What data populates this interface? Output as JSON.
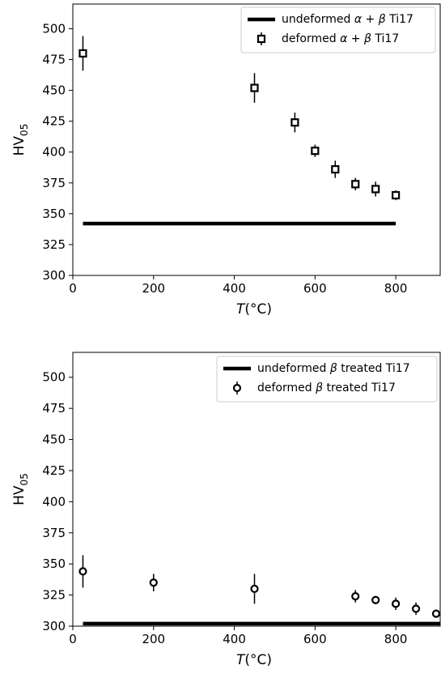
{
  "chart_data": [
    {
      "type": "scatter",
      "title": "",
      "xlabel": "T(°C)",
      "ylabel": "HV05",
      "xlim": [
        0,
        910
      ],
      "ylim": [
        300,
        520
      ],
      "x_ticks": [
        0,
        200,
        400,
        600,
        800
      ],
      "y_ticks": [
        300,
        325,
        350,
        375,
        400,
        425,
        450,
        475,
        500
      ],
      "grid": false,
      "legend_position": "top-right",
      "series": [
        {
          "name": "undeformed α + β Ti17",
          "kind": "line",
          "x": [
            25,
            800
          ],
          "y": [
            342,
            342
          ],
          "color": "#000000"
        },
        {
          "name": "deformed α + β Ti17",
          "kind": "errorbar",
          "marker": "square",
          "x": [
            25,
            450,
            550,
            600,
            650,
            700,
            750,
            800
          ],
          "y": [
            480,
            452,
            424,
            401,
            386,
            374,
            370,
            365
          ],
          "yerr": [
            14,
            12,
            8,
            5,
            7,
            5,
            6,
            4
          ],
          "color": "#000000"
        }
      ]
    },
    {
      "type": "scatter",
      "title": "",
      "xlabel": "T(°C)",
      "ylabel": "HV05",
      "xlim": [
        0,
        910
      ],
      "ylim": [
        300,
        520
      ],
      "x_ticks": [
        0,
        200,
        400,
        600,
        800
      ],
      "y_ticks": [
        300,
        325,
        350,
        375,
        400,
        425,
        450,
        475,
        500
      ],
      "grid": false,
      "legend_position": "top-right",
      "series": [
        {
          "name": "undeformed β treated Ti17",
          "kind": "line",
          "x": [
            25,
            910
          ],
          "y": [
            302,
            302
          ],
          "color": "#000000"
        },
        {
          "name": "deformed β treated Ti17",
          "kind": "errorbar",
          "marker": "circle",
          "x": [
            25,
            200,
            450,
            700,
            750,
            800,
            850,
            900
          ],
          "y": [
            344,
            335,
            330,
            324,
            321,
            318,
            314,
            310
          ],
          "yerr": [
            13,
            7,
            12,
            5,
            3,
            5,
            5,
            3
          ],
          "color": "#000000"
        }
      ]
    }
  ]
}
